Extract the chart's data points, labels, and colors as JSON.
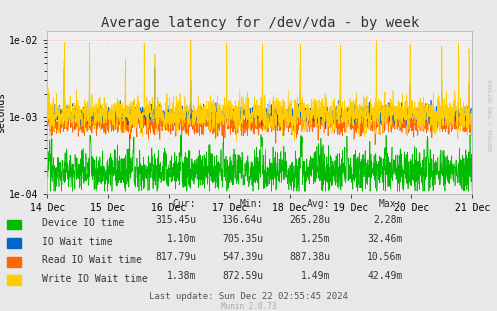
{
  "title": "Average latency for /dev/vda - by week",
  "ylabel": "seconds",
  "background_color": "#e8e8e8",
  "plot_bg_color": "#f0f0f0",
  "grid_color_major": "#ff9999",
  "grid_color_minor": "#cccccc",
  "x_ticks_labels": [
    "14 Dec",
    "15 Dec",
    "16 Dec",
    "17 Dec",
    "18 Dec",
    "19 Dec",
    "20 Dec",
    "21 Dec"
  ],
  "legend": [
    {
      "label": "Device IO time",
      "color": "#00bb00"
    },
    {
      "label": "IO Wait time",
      "color": "#0066cc"
    },
    {
      "label": "Read IO Wait time",
      "color": "#ff6600"
    },
    {
      "label": "Write IO Wait time",
      "color": "#ffcc00"
    }
  ],
  "table_headers": [
    "Cur:",
    "Min:",
    "Avg:",
    "Max:"
  ],
  "table_rows": [
    [
      "315.45u",
      "136.64u",
      "265.28u",
      "2.28m"
    ],
    [
      "1.10m",
      "705.35u",
      "1.25m",
      "32.46m"
    ],
    [
      "817.79u",
      "547.39u",
      "887.38u",
      "10.56m"
    ],
    [
      "1.38m",
      "872.59u",
      "1.49m",
      "42.49m"
    ]
  ],
  "last_update": "Last update: Sun Dec 22 02:55:45 2024",
  "munin_version": "Munin 2.0.73",
  "rrdtool_label": "RRDTOOL / TOBI OETIKER",
  "title_fontsize": 10,
  "axis_fontsize": 7,
  "legend_fontsize": 7,
  "table_fontsize": 7
}
